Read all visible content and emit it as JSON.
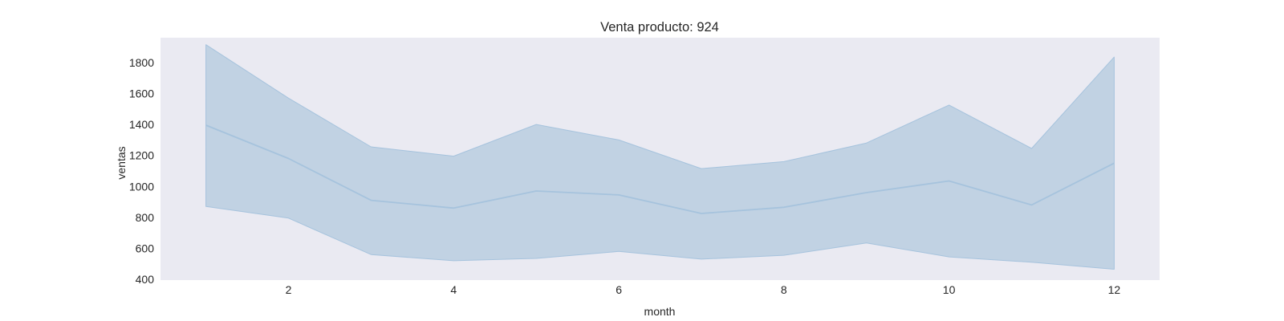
{
  "chart_data": {
    "type": "line",
    "title": "Venta producto: 924",
    "xlabel": "month",
    "ylabel": "ventas",
    "xlim": [
      0.45,
      12.55
    ],
    "ylim": [
      395,
      1960
    ],
    "x_ticks": [
      2,
      4,
      6,
      8,
      10,
      12
    ],
    "y_ticks": [
      400,
      600,
      800,
      1000,
      1200,
      1400,
      1600,
      1800
    ],
    "grid": false,
    "legend": "none",
    "x": [
      1,
      2,
      3,
      4,
      5,
      6,
      7,
      8,
      9,
      10,
      11,
      12
    ],
    "series": [
      {
        "values": [
          1395,
          1180,
          910,
          860,
          970,
          945,
          825,
          865,
          960,
          1035,
          880,
          1150
        ],
        "band_lower": [
          870,
          795,
          560,
          520,
          535,
          580,
          530,
          555,
          635,
          545,
          510,
          465
        ],
        "band_upper": [
          1915,
          1570,
          1255,
          1195,
          1400,
          1300,
          1115,
          1160,
          1280,
          1525,
          1245,
          1835
        ]
      }
    ]
  },
  "colors": {
    "plot_background": "#eaeaf2",
    "line": "#a6c3dd",
    "band_fill": "#c1d2e3"
  }
}
